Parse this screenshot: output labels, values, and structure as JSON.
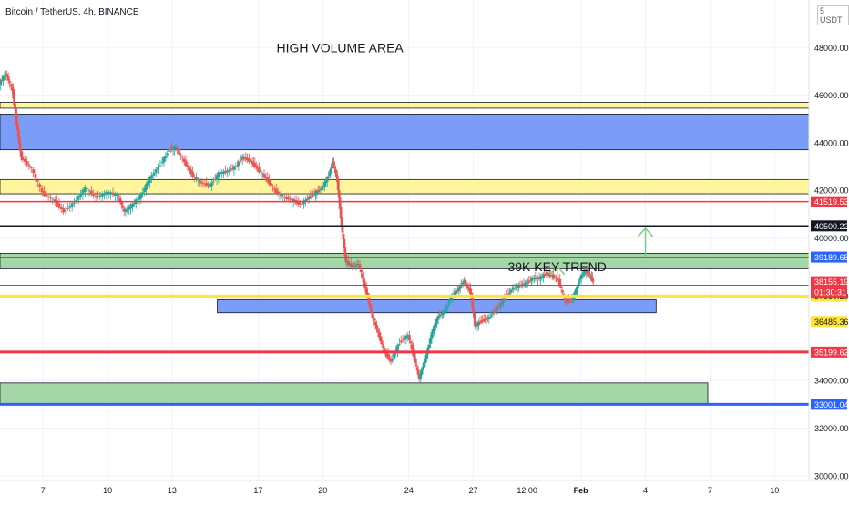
{
  "header": {
    "symbol_line": "Bitcoin / TetherUS, 4h, BINANCE",
    "currency": "USDT",
    "currency_prefix": "5"
  },
  "chart_data": {
    "type": "candlestick",
    "ylim": [
      29800,
      50000
    ],
    "y_ticks": [
      {
        "value": 30000,
        "label": "30000.00"
      },
      {
        "value": 32000,
        "label": "32000.00"
      },
      {
        "value": 34000,
        "label": "34000.00"
      },
      {
        "value": 40000,
        "label": "40000.00"
      },
      {
        "value": 42000,
        "label": "42000.00"
      },
      {
        "value": 44000,
        "label": "44000.00"
      },
      {
        "value": 46000,
        "label": "46000.00"
      },
      {
        "value": 48000,
        "label": "48000.00"
      }
    ],
    "x_ticks": [
      {
        "label": "7",
        "day": 7
      },
      {
        "label": "10",
        "day": 10
      },
      {
        "label": "13",
        "day": 13
      },
      {
        "label": "17",
        "day": 17
      },
      {
        "label": "20",
        "day": 20
      },
      {
        "label": "24",
        "day": 24
      },
      {
        "label": "27",
        "day": 27
      },
      {
        "label": "12:00",
        "day": 29.5
      },
      {
        "label": "Feb",
        "day": 32
      },
      {
        "label": "4",
        "day": 35
      },
      {
        "label": "7",
        "day": 38
      },
      {
        "label": "10",
        "day": 41
      }
    ],
    "x_range_days": [
      5,
      42.6
    ],
    "price_path": [
      [
        5.0,
        46500
      ],
      [
        5.3,
        46900
      ],
      [
        5.6,
        46200
      ],
      [
        5.8,
        44800
      ],
      [
        6.0,
        43400
      ],
      [
        6.5,
        42900
      ],
      [
        7.0,
        41900
      ],
      [
        7.5,
        41600
      ],
      [
        8.0,
        41100
      ],
      [
        8.5,
        41500
      ],
      [
        9.0,
        42100
      ],
      [
        9.5,
        41700
      ],
      [
        10.0,
        41900
      ],
      [
        10.5,
        41800
      ],
      [
        10.8,
        41100
      ],
      [
        11.2,
        41400
      ],
      [
        11.6,
        41800
      ],
      [
        12.0,
        42500
      ],
      [
        12.5,
        43100
      ],
      [
        12.9,
        43700
      ],
      [
        13.2,
        43800
      ],
      [
        13.6,
        43200
      ],
      [
        14.0,
        42600
      ],
      [
        14.4,
        42300
      ],
      [
        14.8,
        42200
      ],
      [
        15.2,
        42700
      ],
      [
        15.6,
        42800
      ],
      [
        16.0,
        43000
      ],
      [
        16.3,
        43400
      ],
      [
        16.7,
        43200
      ],
      [
        17.0,
        42900
      ],
      [
        17.4,
        42500
      ],
      [
        17.8,
        42000
      ],
      [
        18.2,
        41700
      ],
      [
        18.6,
        41600
      ],
      [
        19.0,
        41400
      ],
      [
        19.4,
        41700
      ],
      [
        19.7,
        41900
      ],
      [
        20.0,
        42100
      ],
      [
        20.3,
        42600
      ],
      [
        20.5,
        43200
      ],
      [
        20.7,
        42400
      ],
      [
        20.9,
        40500
      ],
      [
        21.1,
        39000
      ],
      [
        21.4,
        38800
      ],
      [
        21.7,
        38900
      ],
      [
        22.0,
        37900
      ],
      [
        22.3,
        36800
      ],
      [
        22.6,
        36000
      ],
      [
        22.9,
        35200
      ],
      [
        23.2,
        34800
      ],
      [
        23.6,
        35600
      ],
      [
        24.0,
        35900
      ],
      [
        24.3,
        34900
      ],
      [
        24.5,
        34100
      ],
      [
        24.8,
        34900
      ],
      [
        25.1,
        36000
      ],
      [
        25.4,
        36700
      ],
      [
        25.7,
        36900
      ],
      [
        26.0,
        37500
      ],
      [
        26.3,
        37800
      ],
      [
        26.6,
        38200
      ],
      [
        26.9,
        37700
      ],
      [
        27.1,
        36300
      ],
      [
        27.4,
        36500
      ],
      [
        27.7,
        36600
      ],
      [
        28.0,
        36900
      ],
      [
        28.3,
        37200
      ],
      [
        28.6,
        37600
      ],
      [
        28.9,
        37900
      ],
      [
        29.2,
        38000
      ],
      [
        29.5,
        38100
      ],
      [
        29.8,
        38300
      ],
      [
        30.1,
        38300
      ],
      [
        30.4,
        38500
      ],
      [
        30.7,
        38400
      ],
      [
        31.0,
        38200
      ],
      [
        31.3,
        37300
      ],
      [
        31.6,
        37400
      ],
      [
        31.8,
        37800
      ],
      [
        32.0,
        38300
      ],
      [
        32.2,
        38600
      ],
      [
        32.4,
        38500
      ],
      [
        32.6,
        38155
      ]
    ],
    "zones": [
      {
        "name": "high-volume-zone",
        "y0": 43700,
        "y1": 45200,
        "x0": 5,
        "x1": 42.6,
        "color": "#7b9cf7"
      },
      {
        "name": "yellow-zone-upper",
        "y0": 45450,
        "y1": 45700,
        "x0": 5,
        "x1": 42.6,
        "color": "#fff59d"
      },
      {
        "name": "yellow-zone-42k",
        "y0": 41850,
        "y1": 42450,
        "x0": 5,
        "x1": 42.6,
        "color": "#fff59d"
      },
      {
        "name": "green-zone-39k",
        "y0": 38700,
        "y1": 39350,
        "x0": 5,
        "x1": 42.6,
        "color": "#a5d6a7"
      },
      {
        "name": "blue-zone-37k",
        "y0": 36850,
        "y1": 37400,
        "x0": 15.1,
        "x1": 35.5,
        "color": "#7b9cf7"
      },
      {
        "name": "green-zone-33k",
        "y0": 33000,
        "y1": 33900,
        "x0": 5,
        "x1": 37.9,
        "color": "#a5d6a7"
      }
    ],
    "lines": [
      {
        "name": "line-41519",
        "value": 41519.53,
        "label": "41519.53",
        "color": "#f23645",
        "width": 1.5
      },
      {
        "name": "line-40500",
        "value": 40500.22,
        "label": "40500.22",
        "color": "#131722",
        "width": 1.5
      },
      {
        "name": "line-39189",
        "value": 39189.68,
        "label": "39189.68",
        "color": "#2962ff",
        "width": 1
      },
      {
        "name": "line-38004",
        "value": 38004.73,
        "label": "38004.73",
        "color": "#089981",
        "width": 1
      },
      {
        "name": "line-37550",
        "value": 37550.2,
        "label": "37550.20",
        "color": "#ffe433",
        "width": 3
      },
      {
        "name": "line-35199",
        "value": 35199.62,
        "label": "35199.62",
        "color": "#f23645",
        "width": 3
      },
      {
        "name": "line-33001",
        "value": 33001.04,
        "label": "33001.04",
        "color": "#2962ff",
        "width": 3
      }
    ],
    "price_tags": [
      {
        "name": "tag-current-price",
        "value": 38155.19,
        "label": "38155.19",
        "color": "#f23645",
        "countdown": "01:30:31"
      },
      {
        "name": "tag-36485",
        "value": 36485.36,
        "label": "36485.36",
        "color": "#ffe433",
        "text_color": "#131722"
      }
    ],
    "annotations": [
      {
        "name": "high-volume-label",
        "text": "HIGH VOLUME AREA",
        "x": 20.8,
        "y": 48000
      },
      {
        "name": "key-trend-label",
        "text": "39K KEY TREND",
        "x": 30.9,
        "y": 38800
      }
    ],
    "arrows": [
      {
        "name": "arrow-up-right",
        "x": 35.0,
        "y_from": 39200,
        "y_to": 40400,
        "color": "#81c784"
      },
      {
        "name": "arrow-up-mid",
        "x": 30.9,
        "y_from": 38200,
        "y_to": 38800,
        "color": "#81c784"
      }
    ]
  }
}
